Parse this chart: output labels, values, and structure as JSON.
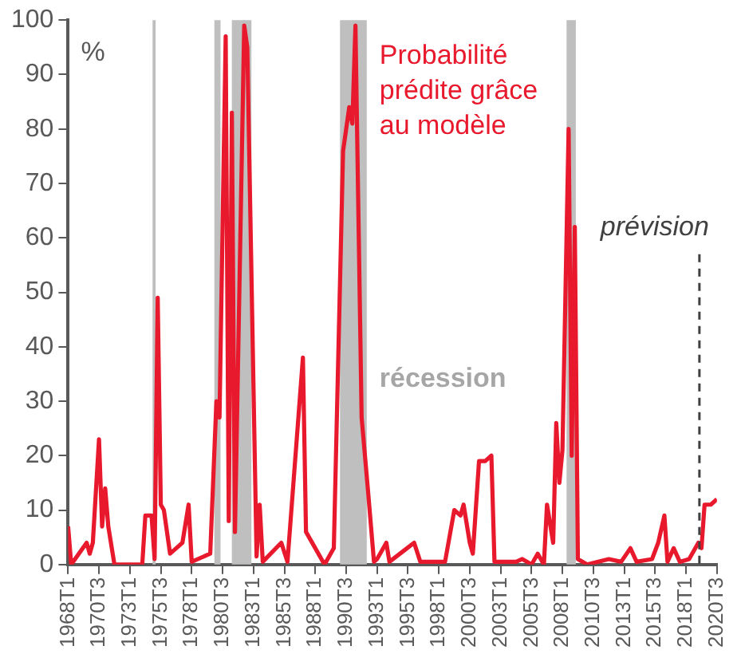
{
  "chart_data": {
    "type": "line",
    "ylabel": "%",
    "xlim": [
      "1968-01",
      "2020-07"
    ],
    "ylim": [
      0,
      100
    ],
    "yticks": [
      0,
      10,
      20,
      30,
      40,
      50,
      60,
      70,
      80,
      90,
      100
    ],
    "xticks": [
      {
        "value": "1968-01",
        "label": "1968T1"
      },
      {
        "value": "1970-07",
        "label": "1970T3"
      },
      {
        "value": "1973-01",
        "label": "1973T1"
      },
      {
        "value": "1975-07",
        "label": "1975T3"
      },
      {
        "value": "1978-01",
        "label": "1978T1"
      },
      {
        "value": "1980-07",
        "label": "1980T3"
      },
      {
        "value": "1983-01",
        "label": "1983T1"
      },
      {
        "value": "1985-07",
        "label": "1985T3"
      },
      {
        "value": "1988-01",
        "label": "1988T1"
      },
      {
        "value": "1990-07",
        "label": "1990T3"
      },
      {
        "value": "1993-01",
        "label": "1993T1"
      },
      {
        "value": "1995-07",
        "label": "1995T3"
      },
      {
        "value": "1998-01",
        "label": "1998T1"
      },
      {
        "value": "2000-07",
        "label": "2000T3"
      },
      {
        "value": "2003-01",
        "label": "2003T1"
      },
      {
        "value": "2005-07",
        "label": "2005T3"
      },
      {
        "value": "2008-01",
        "label": "2008T1"
      },
      {
        "value": "2010-07",
        "label": "2010T3"
      },
      {
        "value": "2013-01",
        "label": "2013T1"
      },
      {
        "value": "2015-07",
        "label": "2015T3"
      },
      {
        "value": "2018-01",
        "label": "2018T1"
      },
      {
        "value": "2020-07",
        "label": "2020T3"
      }
    ],
    "series": [
      {
        "name": "Probabilité prédite grâce au modèle",
        "color": "#e8192c",
        "x": [
          "1968-01",
          "1968-04",
          "1969-07",
          "1969-10",
          "1970-01",
          "1970-07",
          "1970-10",
          "1971-01",
          "1971-04",
          "1971-10",
          "1974-01",
          "1974-04",
          "1974-10",
          "1975-01",
          "1975-04",
          "1975-07",
          "1975-10",
          "1976-04",
          "1976-10",
          "1977-04",
          "1977-10",
          "1978-01",
          "1979-07",
          "1980-01",
          "1980-04",
          "1980-10",
          "1981-01",
          "1981-04",
          "1981-07",
          "1982-04",
          "1982-07",
          "1983-04",
          "1983-07",
          "1983-10",
          "1985-04",
          "1985-10",
          "1987-01",
          "1987-04",
          "1988-10",
          "1989-07",
          "1990-04",
          "1990-10",
          "1991-01",
          "1991-04",
          "1991-10",
          "1992-04",
          "1992-10",
          "1993-01",
          "1993-10",
          "1994-01",
          "1996-01",
          "1996-07",
          "1998-07",
          "1999-04",
          "1999-10",
          "2000-01",
          "2000-07",
          "2000-10",
          "2001-04",
          "2001-10",
          "2002-04",
          "2002-07",
          "2004-04",
          "2004-10",
          "2005-07",
          "2006-01",
          "2006-07",
          "2006-10",
          "2007-04",
          "2007-07",
          "2007-10",
          "2008-01",
          "2008-07",
          "2008-10",
          "2009-01",
          "2009-04",
          "2010-01",
          "2011-10",
          "2012-10",
          "2013-07",
          "2014-01",
          "2015-04",
          "2015-10",
          "2016-04",
          "2016-07",
          "2017-01",
          "2017-07",
          "2018-04",
          "2019-01",
          "2019-04",
          "2019-07",
          "2020-01",
          "2020-07"
        ],
        "values": [
          7,
          0,
          4,
          2,
          4,
          23,
          7,
          14,
          7,
          0,
          0,
          9,
          9,
          1,
          49,
          11,
          10,
          2,
          3,
          4,
          11,
          0.5,
          2,
          30,
          27,
          97,
          8,
          83,
          6,
          99,
          95,
          1.5,
          11,
          0.5,
          4,
          0.5,
          38,
          6,
          0,
          3,
          76,
          84,
          81,
          99,
          27,
          14,
          0.5,
          1,
          4,
          0.5,
          4,
          0.5,
          0.5,
          10,
          9,
          11,
          4,
          2,
          19,
          19,
          20,
          0.5,
          0.5,
          1,
          0,
          2,
          0,
          11,
          4,
          26,
          15,
          21,
          80,
          20,
          62,
          1,
          0,
          1,
          0.5,
          3,
          0.5,
          1,
          4,
          9,
          0.5,
          3,
          0.5,
          1,
          4,
          3,
          11,
          11,
          12
        ]
      }
    ],
    "bands": [
      {
        "axis": "x",
        "from": "1974-11",
        "to": "1975-02",
        "color": "#bfbfbf"
      },
      {
        "axis": "x",
        "from": "1979-11",
        "to": "1980-05",
        "color": "#bfbfbf"
      },
      {
        "axis": "x",
        "from": "1981-04",
        "to": "1982-11",
        "color": "#bfbfbf"
      },
      {
        "axis": "x",
        "from": "1990-01",
        "to": "1992-03",
        "color": "#bfbfbf"
      },
      {
        "axis": "x",
        "from": "2008-05",
        "to": "2009-02",
        "color": "#bfbfbf"
      }
    ],
    "ref_lines": [
      {
        "axis": "x",
        "value": "2019-02",
        "label": "prévision",
        "color": "#404040",
        "line_style": "dashed"
      }
    ],
    "annotations": [
      "récession"
    ],
    "legend": false
  }
}
